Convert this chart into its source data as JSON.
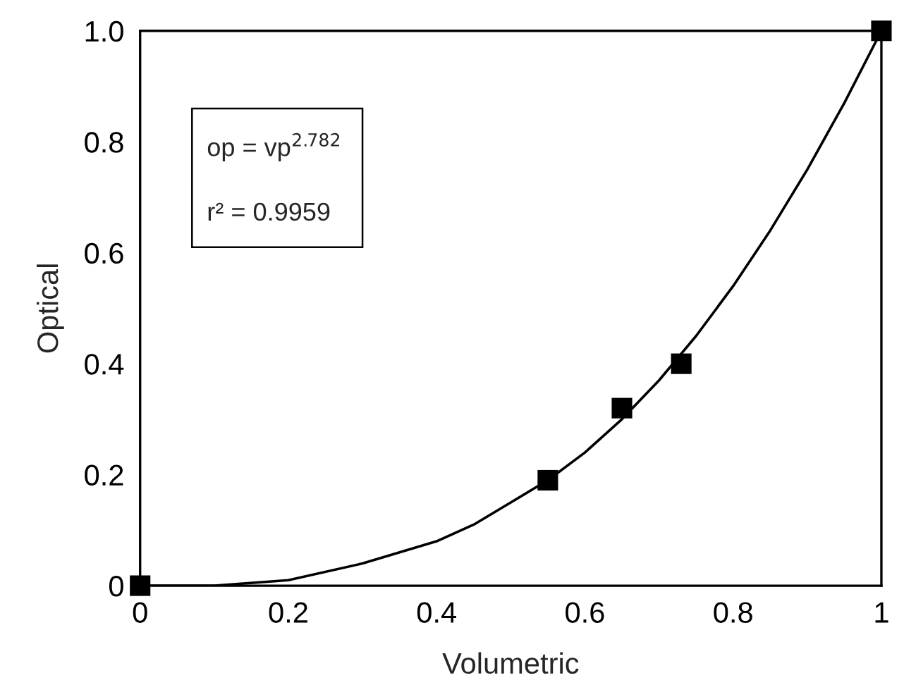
{
  "chart_data": {
    "type": "scatter",
    "xlabel": "Volumetric",
    "ylabel": "Optical",
    "xlim": [
      0,
      1
    ],
    "ylim": [
      0,
      1
    ],
    "xticks": [
      0,
      0.2,
      0.4,
      0.6,
      0.8,
      1
    ],
    "yticks": [
      0,
      0.2,
      0.4,
      0.6,
      0.8,
      {
        "value": 1,
        "label": "1.0"
      }
    ],
    "marker": "square",
    "grid": false,
    "legend": false,
    "annotations": [
      "op = vp$^{2.782}$",
      "r² = 0.9959"
    ],
    "series": [
      {
        "color": "#000000",
        "x": [
          0,
          0.55,
          0.65,
          0.73,
          1
        ],
        "values": [
          0,
          0.19,
          0.32,
          0.4,
          1
        ]
      },
      {
        "type": "line",
        "color": "#000000",
        "marker": "none",
        "x": [
          0,
          0.1,
          0.2,
          0.3,
          0.4,
          0.45,
          0.5,
          0.55,
          0.6,
          0.65,
          0.7,
          0.75,
          0.8,
          0.85,
          0.9,
          0.95,
          1
        ],
        "values": [
          0,
          0,
          0.01,
          0.04,
          0.08,
          0.11,
          0.15,
          0.19,
          0.24,
          0.3,
          0.37,
          0.45,
          0.54,
          0.64,
          0.75,
          0.87,
          1
        ]
      }
    ]
  }
}
